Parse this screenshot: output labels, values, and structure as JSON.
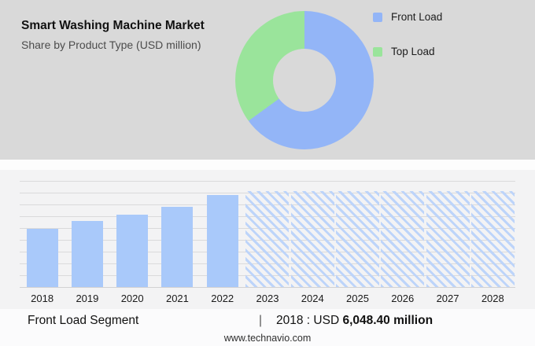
{
  "header": {
    "title": "Smart Washing Machine Market",
    "subtitle": "Share by Product Type (USD million)"
  },
  "legend": {
    "items": [
      {
        "label": "Front Load",
        "color": "#93b5f7"
      },
      {
        "label": "Top Load",
        "color": "#9ae49b"
      }
    ]
  },
  "chart_data": [
    {
      "type": "pie",
      "donut": true,
      "title": "Share by Product Type (USD million)",
      "labels": [
        "Front Load",
        "Top Load"
      ],
      "values": [
        65,
        35
      ],
      "colors": [
        "#93b5f7",
        "#9ae49b"
      ],
      "legend_position": "right"
    },
    {
      "type": "bar",
      "title": "Front Load segment size by year (USD million)",
      "categories": [
        "2018",
        "2019",
        "2020",
        "2021",
        "2022",
        "2023",
        "2024",
        "2025",
        "2026",
        "2027",
        "2028"
      ],
      "values": [
        6048.4,
        6840,
        7500,
        8300,
        9530,
        null,
        null,
        null,
        null,
        null,
        null
      ],
      "ylim": [
        0,
        11000
      ],
      "bar_color": "#a9c9fa",
      "grid": true,
      "forecast_from": "2023",
      "forecast_hatched": true,
      "forecast_height_pct": 90.5
    }
  ],
  "footer": {
    "segment": "Front Load Segment",
    "separator": "|",
    "stat_prefix": "2018 : USD ",
    "stat_value": "6,048.40 million",
    "website": "www.technavio.com"
  }
}
